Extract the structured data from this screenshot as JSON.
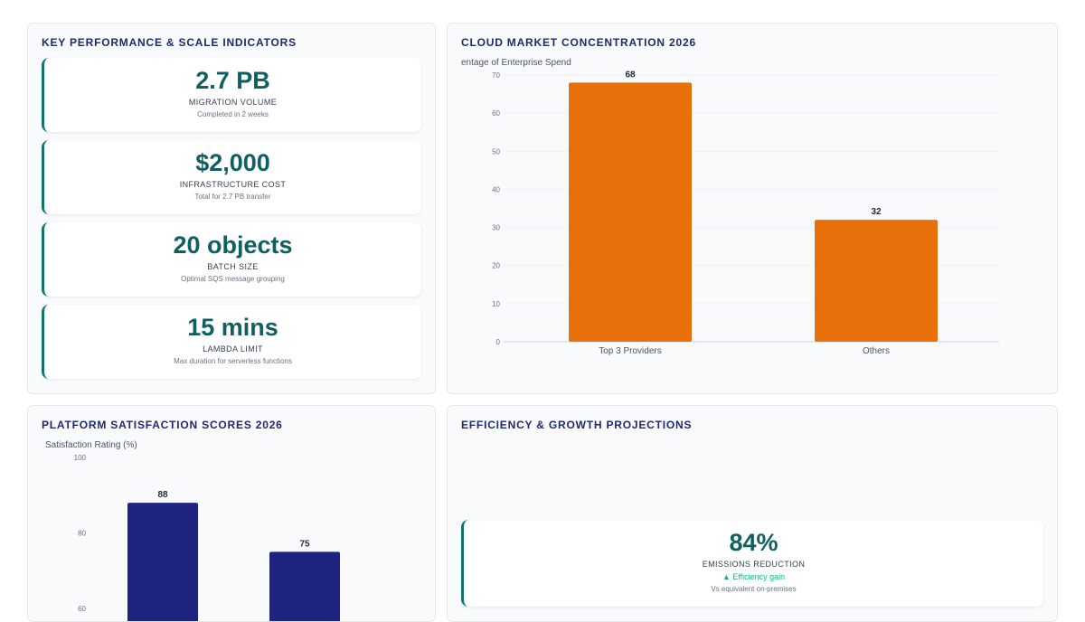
{
  "kpi_panel": {
    "title": "KEY PERFORMANCE & SCALE INDICATORS",
    "cards": [
      {
        "value": "2.7 PB",
        "label": "MIGRATION VOLUME",
        "sub": "Completed in 2 weeks"
      },
      {
        "value": "$2,000",
        "label": "INFRASTRUCTURE COST",
        "sub": "Total for 2.7 PB transfer"
      },
      {
        "value": "20 objects",
        "label": "BATCH SIZE",
        "sub": "Optimal SQS message grouping"
      },
      {
        "value": "15 mins",
        "label": "LAMBDA LIMIT",
        "sub": "Max duration for serverless functions"
      }
    ]
  },
  "market_panel": {
    "title": "CLOUD MARKET CONCENTRATION 2026"
  },
  "satisfaction_panel": {
    "title": "PLATFORM SATISFACTION SCORES 2026"
  },
  "efficiency_panel": {
    "title": "EFFICIENCY & GROWTH PROJECTIONS",
    "card": {
      "value": "84%",
      "label": "EMISSIONS REDUCTION",
      "trend": "▲ Efficiency gain",
      "sub": "Vs equivalent on-premises"
    }
  },
  "colors": {
    "accent": "#0f766e",
    "orange": "#e8700a",
    "navy": "#1e2380",
    "positive": "#10b981"
  },
  "chart_data": [
    {
      "type": "bar",
      "ylabel": "entage of Enterprise Spend",
      "categories": [
        "Top 3 Providers",
        "Others"
      ],
      "values": [
        68,
        32
      ],
      "ylim": [
        0,
        70
      ],
      "yticks": [
        0,
        10,
        20,
        30,
        40,
        50,
        60,
        70
      ],
      "grid": true,
      "color": "#e8700a"
    },
    {
      "type": "bar",
      "ylabel": "Satisfaction Rating (%)",
      "values": [
        88,
        75
      ],
      "ylim": [
        60,
        100
      ],
      "yticks": [
        60,
        80,
        100
      ],
      "grid": false,
      "color": "#1e2380"
    }
  ]
}
